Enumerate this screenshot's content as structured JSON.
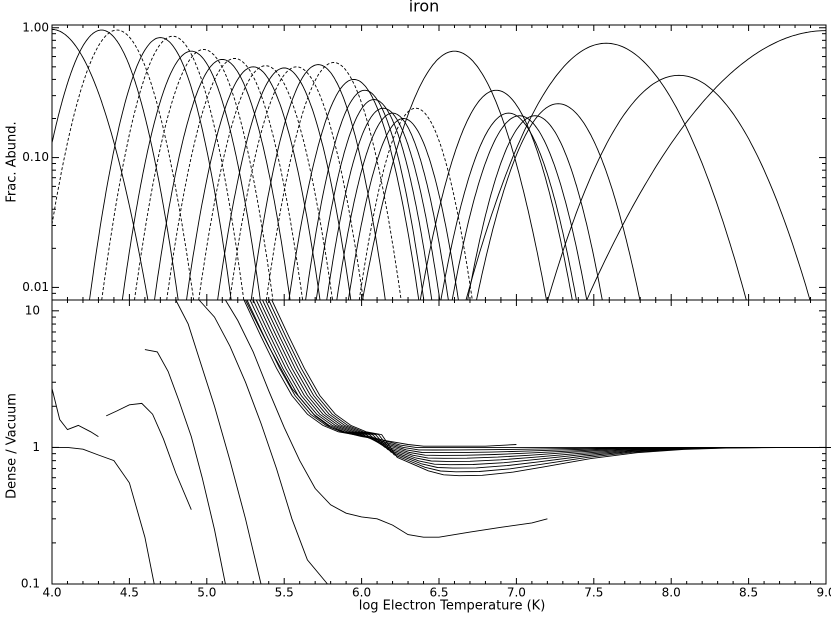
{
  "chart_data": {
    "title": "iron",
    "xlabel": "log Electron Temperature  (K)",
    "xlim": [
      4.0,
      9.0
    ],
    "xticks": [
      "4.0",
      "4.5",
      "5.0",
      "5.5",
      "6.0",
      "6.5",
      "7.0",
      "7.5",
      "8.0",
      "8.5",
      "9.0"
    ],
    "panels": [
      {
        "type": "line",
        "ylabel": "Frac. Abund.",
        "yscale": "log",
        "ylim": [
          0.008,
          1.05
        ],
        "yticks": [
          "0.01",
          "0.10",
          "1.00"
        ],
        "series": [
          {
            "peak_x": 4.0,
            "peak_y": 0.97,
            "width": 0.2,
            "style": "solid"
          },
          {
            "peak_x": 4.32,
            "peak_y": 0.96,
            "width": 0.16,
            "style": "solid"
          },
          {
            "peak_x": 4.42,
            "peak_y": 0.96,
            "width": 0.16,
            "style": "dashed"
          },
          {
            "peak_x": 4.7,
            "peak_y": 0.84,
            "width": 0.15,
            "style": "solid"
          },
          {
            "peak_x": 4.78,
            "peak_y": 0.86,
            "width": 0.15,
            "style": "dashed"
          },
          {
            "peak_x": 4.9,
            "peak_y": 0.66,
            "width": 0.15,
            "style": "solid"
          },
          {
            "peak_x": 4.98,
            "peak_y": 0.68,
            "width": 0.15,
            "style": "dashed"
          },
          {
            "peak_x": 5.1,
            "peak_y": 0.57,
            "width": 0.15,
            "style": "solid"
          },
          {
            "peak_x": 5.18,
            "peak_y": 0.58,
            "width": 0.15,
            "style": "dashed"
          },
          {
            "peak_x": 5.3,
            "peak_y": 0.5,
            "width": 0.15,
            "style": "solid"
          },
          {
            "peak_x": 5.38,
            "peak_y": 0.51,
            "width": 0.15,
            "style": "dashed"
          },
          {
            "peak_x": 5.5,
            "peak_y": 0.49,
            "width": 0.15,
            "style": "solid"
          },
          {
            "peak_x": 5.58,
            "peak_y": 0.5,
            "width": 0.15,
            "style": "dashed"
          },
          {
            "peak_x": 5.72,
            "peak_y": 0.52,
            "width": 0.15,
            "style": "solid"
          },
          {
            "peak_x": 5.82,
            "peak_y": 0.54,
            "width": 0.15,
            "style": "dashed"
          },
          {
            "peak_x": 5.95,
            "peak_y": 0.4,
            "width": 0.15,
            "style": "solid"
          },
          {
            "peak_x": 6.02,
            "peak_y": 0.33,
            "width": 0.14,
            "style": "solid"
          },
          {
            "peak_x": 6.08,
            "peak_y": 0.28,
            "width": 0.14,
            "style": "solid"
          },
          {
            "peak_x": 6.14,
            "peak_y": 0.24,
            "width": 0.14,
            "style": "solid"
          },
          {
            "peak_x": 6.2,
            "peak_y": 0.22,
            "width": 0.14,
            "style": "solid"
          },
          {
            "peak_x": 6.27,
            "peak_y": 0.2,
            "width": 0.14,
            "style": "solid"
          },
          {
            "peak_x": 6.35,
            "peak_y": 0.24,
            "width": 0.14,
            "style": "dashed"
          },
          {
            "peak_x": 6.6,
            "peak_y": 0.66,
            "width": 0.2,
            "style": "solid"
          },
          {
            "peak_x": 6.87,
            "peak_y": 0.33,
            "width": 0.18,
            "style": "solid"
          },
          {
            "peak_x": 6.95,
            "peak_y": 0.22,
            "width": 0.17,
            "style": "solid"
          },
          {
            "peak_x": 7.02,
            "peak_y": 0.21,
            "width": 0.17,
            "style": "solid"
          },
          {
            "peak_x": 7.12,
            "peak_y": 0.21,
            "width": 0.17,
            "style": "solid"
          },
          {
            "peak_x": 7.27,
            "peak_y": 0.26,
            "width": 0.2,
            "style": "solid"
          },
          {
            "peak_x": 7.58,
            "peak_y": 0.76,
            "width": 0.3,
            "style": "solid"
          },
          {
            "peak_x": 8.05,
            "peak_y": 0.43,
            "width": 0.3,
            "style": "solid"
          },
          {
            "peak_x": 9.0,
            "peak_y": 0.95,
            "width": 0.5,
            "style": "solid"
          }
        ]
      },
      {
        "type": "line",
        "ylabel": "Dense / Vacuum",
        "yscale": "log",
        "ylim": [
          0.1,
          12
        ],
        "yticks": [
          "0.1",
          "1",
          "10"
        ],
        "series": [
          {
            "x": [
              4.0,
              4.05,
              4.1,
              4.17,
              4.25,
              4.3
            ],
            "y": [
              2.7,
              1.6,
              1.35,
              1.45,
              1.3,
              1.2
            ]
          },
          {
            "x": [
              4.35,
              4.42,
              4.5,
              4.58,
              4.65,
              4.72,
              4.8,
              4.9
            ],
            "y": [
              1.7,
              1.85,
              2.05,
              2.1,
              1.75,
              1.15,
              0.65,
              0.35
            ]
          },
          {
            "x": [
              4.0,
              4.1,
              4.2,
              4.3,
              4.4,
              4.5,
              4.6,
              4.66
            ],
            "y": [
              1.0,
              1.0,
              0.97,
              0.88,
              0.8,
              0.55,
              0.22,
              0.1
            ]
          },
          {
            "x": [
              4.6,
              4.68,
              4.75,
              4.82,
              4.9,
              4.97,
              5.05,
              5.12
            ],
            "y": [
              5.2,
              5.0,
              3.6,
              2.2,
              1.2,
              0.6,
              0.25,
              0.1
            ]
          },
          {
            "x": [
              4.8,
              4.88,
              4.95,
              5.05,
              5.15,
              5.25,
              5.35
            ],
            "y": [
              12,
              8,
              4.5,
              2.0,
              0.8,
              0.3,
              0.1
            ]
          },
          {
            "x": [
              4.95,
              5.05,
              5.15,
              5.25,
              5.35,
              5.45,
              5.55,
              5.65,
              5.78
            ],
            "y": [
              12,
              9,
              5.5,
              3.0,
              1.5,
              0.7,
              0.3,
              0.15,
              0.1
            ]
          },
          {
            "x": [
              5.12,
              5.2,
              5.3,
              5.4,
              5.5,
              5.6,
              5.7,
              5.8,
              5.9,
              6.0,
              6.1,
              6.2,
              6.3,
              6.4,
              6.5,
              6.7,
              6.9,
              7.1,
              7.2
            ],
            "y": [
              12,
              8.5,
              5.0,
              2.6,
              1.4,
              0.8,
              0.5,
              0.38,
              0.33,
              0.31,
              0.3,
              0.27,
              0.23,
              0.22,
              0.22,
              0.24,
              0.26,
              0.28,
              0.3
            ]
          },
          {
            "x": [
              5.25,
              5.4,
              5.55,
              5.7,
              5.8,
              5.9,
              6.0,
              6.1,
              6.2,
              6.3,
              6.4,
              6.6,
              6.8,
              7.0
            ],
            "y": [
              12,
              5.5,
              2.7,
              1.7,
              1.4,
              1.28,
              1.2,
              1.15,
              1.1,
              1.05,
              1.02,
              1.02,
              1.02,
              1.05
            ]
          }
        ],
        "bundle": {
          "count": 10,
          "x": [
            5.24,
            5.35,
            5.45,
            5.55,
            5.65,
            5.75,
            5.85,
            5.95,
            6.05,
            6.15,
            6.25,
            6.35,
            6.45,
            6.6,
            6.8,
            7.0,
            7.3,
            7.6,
            7.9,
            8.2,
            8.6,
            9.0
          ],
          "y": [
            12,
            6.5,
            3.8,
            2.4,
            1.75,
            1.45,
            1.3,
            1.24,
            1.2,
            1.12,
            1.04,
            1.0,
            1.0,
            1.0,
            1.0,
            1.0,
            1.0,
            1.0,
            1.0,
            1.0,
            1.0,
            1.0
          ],
          "bottom_min": 0.62
        }
      }
    ]
  }
}
